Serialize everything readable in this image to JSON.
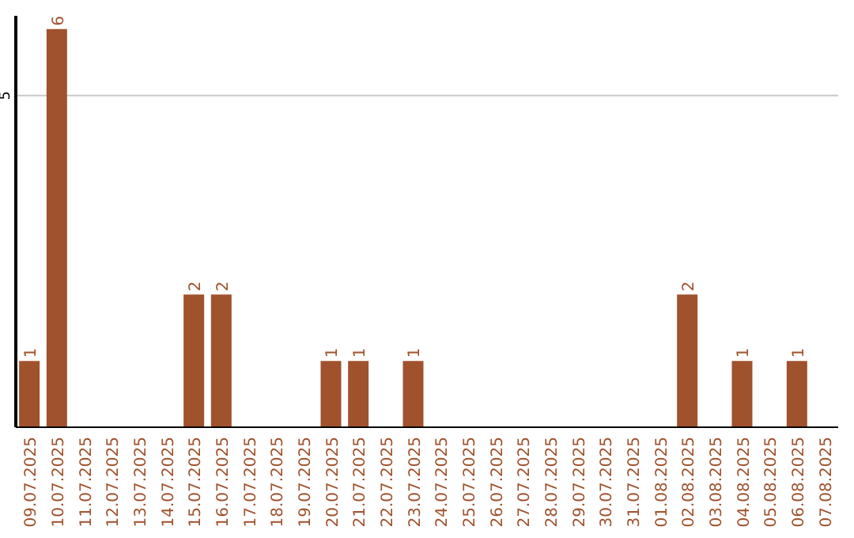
{
  "chart_data": {
    "type": "bar",
    "categories": [
      "09.07.2025",
      "10.07.2025",
      "11.07.2025",
      "12.07.2025",
      "13.07.2025",
      "14.07.2025",
      "15.07.2025",
      "16.07.2025",
      "17.07.2025",
      "18.07.2025",
      "19.07.2025",
      "20.07.2025",
      "21.07.2025",
      "22.07.2025",
      "23.07.2025",
      "24.07.2025",
      "25.07.2025",
      "26.07.2025",
      "27.07.2025",
      "28.07.2025",
      "29.07.2025",
      "30.07.2025",
      "31.07.2025",
      "01.08.2025",
      "02.08.2025",
      "03.08.2025",
      "04.08.2025",
      "05.08.2025",
      "06.08.2025",
      "07.08.2025"
    ],
    "values": [
      1,
      6,
      0,
      0,
      0,
      0,
      2,
      2,
      0,
      0,
      0,
      1,
      1,
      0,
      1,
      0,
      0,
      0,
      0,
      0,
      0,
      0,
      0,
      0,
      2,
      0,
      1,
      0,
      1,
      0
    ],
    "value_labels": [
      "1",
      "6",
      null,
      null,
      null,
      null,
      "2",
      "2",
      null,
      null,
      null,
      "1",
      "1",
      null,
      "1",
      null,
      null,
      null,
      null,
      null,
      null,
      null,
      null,
      null,
      "2",
      null,
      "1",
      null,
      "1",
      null
    ],
    "color": "#a0522d",
    "ylim": [
      0,
      6.2
    ],
    "yticks": [
      5
    ],
    "grid": "y",
    "legend": false
  }
}
